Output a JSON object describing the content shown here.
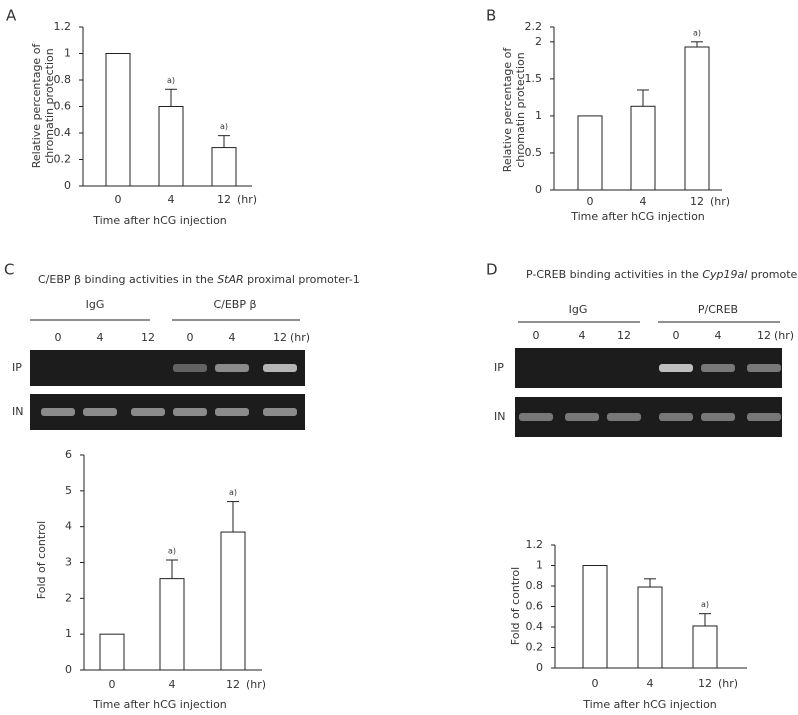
{
  "chart_data": [
    {
      "type": "bar",
      "panel": "A",
      "ylabel": [
        "Relative percentage of",
        "chromatin protection"
      ],
      "xlabel": "Time after hCG injection",
      "x_unit": "(hr)",
      "categories": [
        "0",
        "4",
        "12"
      ],
      "values": [
        1,
        0.6,
        0.29
      ],
      "errors": [
        null,
        0.13,
        0.09
      ],
      "annotations": [
        null,
        "a)",
        "a)"
      ],
      "ylim": [
        0,
        1.2
      ],
      "yticks": [
        0,
        0.2,
        0.4,
        0.6,
        0.8,
        1,
        1.2
      ],
      "color": "#ffffff"
    },
    {
      "type": "bar",
      "panel": "B",
      "ylabel": [
        "Relative percentage of",
        "chromatin protection"
      ],
      "xlabel": "Time after hCG injection",
      "x_unit": "(hr)",
      "categories": [
        "0",
        "4",
        "12"
      ],
      "values": [
        1,
        1.13,
        1.93
      ],
      "errors": [
        null,
        0.22,
        0.07
      ],
      "annotations": [
        null,
        null,
        "a)"
      ],
      "ylim": [
        0,
        2.2
      ],
      "yticks": [
        0,
        0.5,
        1,
        1.5,
        2,
        2.2
      ],
      "color": "#ffffff"
    },
    {
      "type": "bar",
      "panel": "C",
      "ylabel": [
        "Fold of control"
      ],
      "xlabel": "Time after hCG injection",
      "x_unit": "(hr)",
      "categories": [
        "0",
        "4",
        "12"
      ],
      "values": [
        1,
        2.55,
        3.85
      ],
      "errors": [
        null,
        0.52,
        0.85
      ],
      "annotations": [
        null,
        "a)",
        "a)"
      ],
      "ylim": [
        0,
        6
      ],
      "yticks": [
        0,
        1,
        2,
        3,
        4,
        5,
        6
      ],
      "color": "#ffffff"
    },
    {
      "type": "bar",
      "panel": "D",
      "ylabel": [
        "Fold of control"
      ],
      "xlabel": "Time after hCG injection",
      "x_unit": "(hr)",
      "categories": [
        "0",
        "4",
        "12"
      ],
      "values": [
        1,
        0.79,
        0.41
      ],
      "errors": [
        null,
        0.08,
        0.12
      ],
      "annotations": [
        null,
        null,
        "a)"
      ],
      "ylim": [
        0,
        1.2
      ],
      "yticks": [
        0,
        0.2,
        0.4,
        0.6,
        0.8,
        1,
        1.2
      ],
      "color": "#ffffff"
    }
  ],
  "gels": [
    {
      "title_parts": [
        "C/EBP β binding activities in the ",
        "StAR",
        " proximal promoter-1"
      ],
      "groups": [
        "IgG",
        "C/EBP β"
      ],
      "lanes": [
        "0",
        "4",
        "12",
        "0",
        "4",
        "12"
      ],
      "unit": "(hr)",
      "rows": [
        "IP",
        "IN"
      ]
    },
    {
      "title_parts": [
        "P-CREB binding activities in the ",
        "Cyp19al",
        " promoter"
      ],
      "groups": [
        "IgG",
        "P/CREB"
      ],
      "lanes": [
        "0",
        "4",
        "12",
        "0",
        "4",
        "12"
      ],
      "unit": "(hr)",
      "rows": [
        "IP",
        "IN"
      ]
    }
  ]
}
